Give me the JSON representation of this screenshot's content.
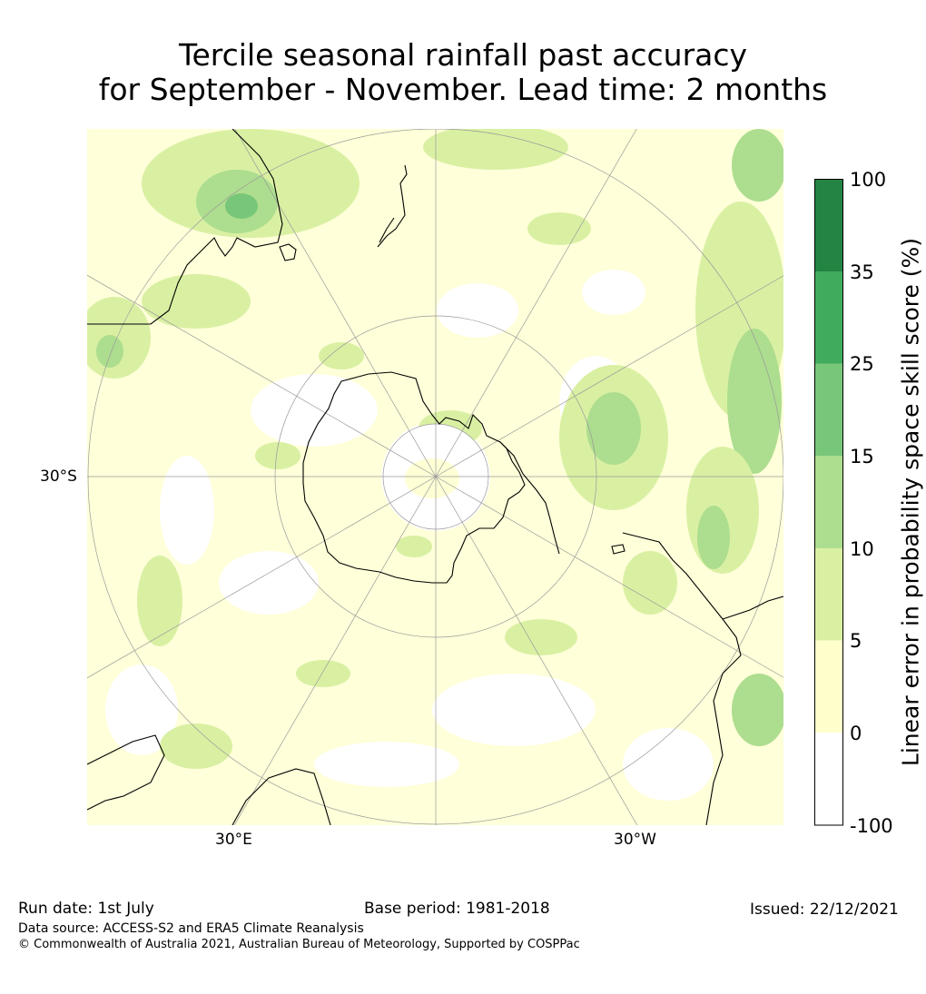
{
  "title": {
    "line1": "Tercile seasonal rainfall past accuracy",
    "line2": "for September - November. Lead time: 2 months"
  },
  "map": {
    "projection": "south-polar-stereographic",
    "latitude_label": "30°S",
    "longitude_labels": [
      "30°E",
      "30°W"
    ],
    "ocean_color": "#ffffff",
    "coastline_color": "#000000",
    "grid_color": "#9a9a9a"
  },
  "colorbar": {
    "label": "Linear error in probability space skill score (%)",
    "ticks": [
      "100",
      "35",
      "25",
      "15",
      "10",
      "5",
      "0",
      "-100"
    ],
    "bins": [
      {
        "from": "-100",
        "to": "0",
        "color": "#ffffff"
      },
      {
        "from": "0",
        "to": "5",
        "color": "#ffffcc"
      },
      {
        "from": "5",
        "to": "10",
        "color": "#d9f0a3"
      },
      {
        "from": "10",
        "to": "15",
        "color": "#addd8e"
      },
      {
        "from": "15",
        "to": "25",
        "color": "#78c679"
      },
      {
        "from": "25",
        "to": "35",
        "color": "#41ab5d"
      },
      {
        "from": "35",
        "to": "100",
        "color": "#238443"
      }
    ]
  },
  "footer": {
    "run_date": "Run date: 1st July",
    "base_period": "Base period: 1981-2018",
    "issued": "Issued: 22/12/2021",
    "data_source": "Data source: ACCESS-S2 and ERA5 Climate Reanalysis",
    "copyright": "© Commonwealth of Australia 2021, Australian Bureau of Meteorology, Supported by COSPPac"
  }
}
